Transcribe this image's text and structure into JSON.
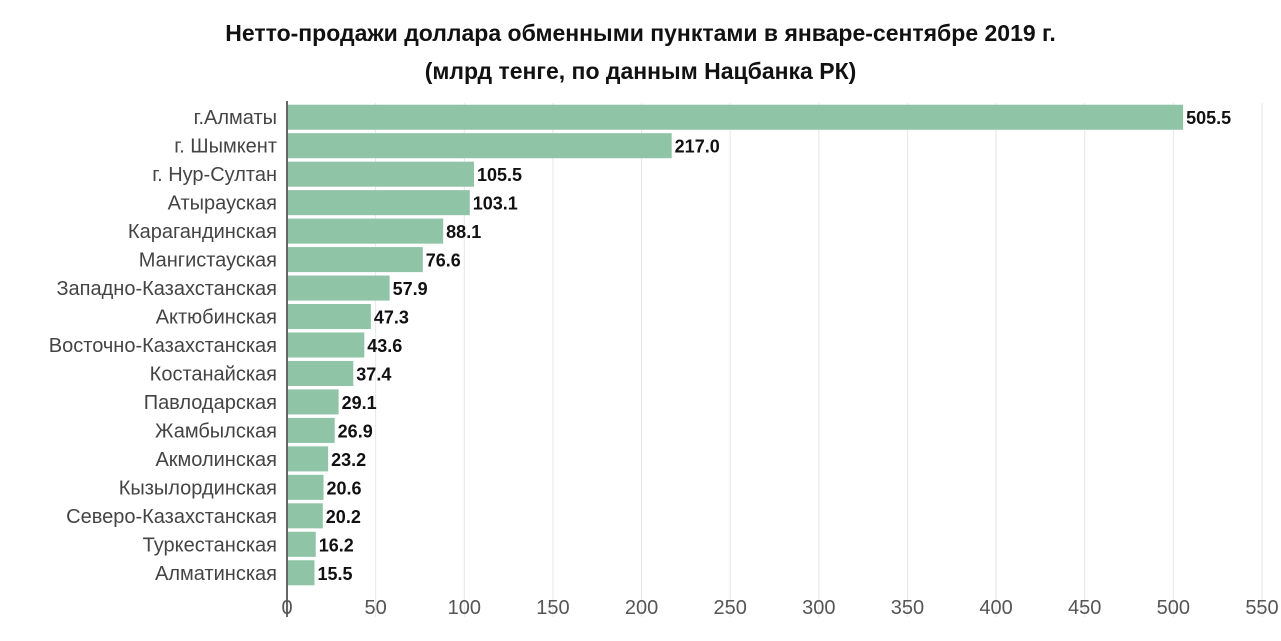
{
  "chart_data": {
    "type": "bar",
    "orientation": "horizontal",
    "title": "Нетто-продажи доллара обменными пунктами в январе-сентябре 2019 г.",
    "subtitle": "(млрд тенге, по данным Нацбанка РК)",
    "categories": [
      "г.Алматы",
      "г. Шымкент",
      "г. Нур-Султан",
      "Атырауская",
      "Карагандинская",
      "Мангистауская",
      "Западно-Казахстанская",
      "Актюбинская",
      "Восточно-Казахстанская",
      "Костанайская",
      "Павлодарская",
      "Жамбылская",
      "Акмолинская",
      "Кызылординская",
      "Северо-Казахстанская",
      "Туркестанская",
      "Алматинская"
    ],
    "values": [
      505.5,
      217.0,
      105.5,
      103.1,
      88.1,
      76.6,
      57.9,
      47.3,
      43.6,
      37.4,
      29.1,
      26.9,
      23.2,
      20.6,
      20.2,
      16.2,
      15.5
    ],
    "value_labels": [
      "505.5",
      "217.0",
      "105.5",
      "103.1",
      "88.1",
      "76.6",
      "57.9",
      "47.3",
      "43.6",
      "37.4",
      "29.1",
      "26.9",
      "23.2",
      "20.6",
      "20.2",
      "16.2",
      "15.5"
    ],
    "xlim": [
      0,
      550
    ],
    "x_ticks": [
      0,
      50,
      100,
      150,
      200,
      250,
      300,
      350,
      400,
      450,
      500,
      550
    ],
    "grid": true,
    "bar_color": "#8fc4a7",
    "xlabel": "",
    "ylabel": ""
  }
}
